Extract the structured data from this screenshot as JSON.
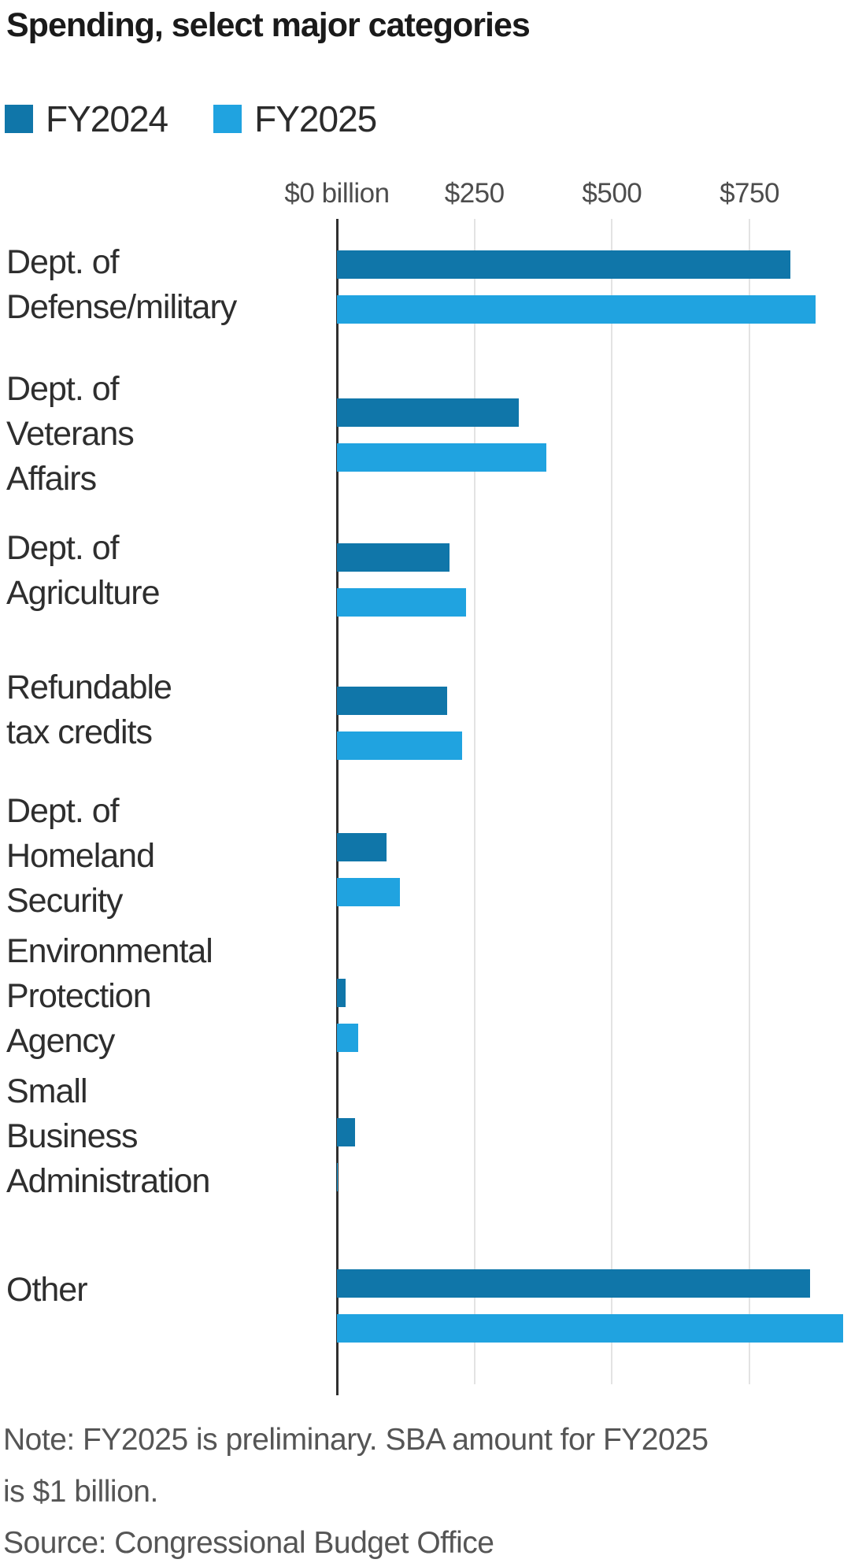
{
  "title": "Spending, select major categories",
  "legend": [
    {
      "label": "FY2024",
      "color": "#1076a9"
    },
    {
      "label": "FY2025",
      "color": "#20a3e0"
    }
  ],
  "note_lines": "Note: FY2025 is preliminary. SBA amount for FY2025\nis $1 billion.",
  "source": "Source: Congressional Budget Office",
  "category_label_lines": [
    "Dept. of\nDefense/military",
    "Dept. of\nVeterans\nAffairs",
    "Dept. of\nAgriculture",
    "Refundable\ntax credits",
    "Dept. of\nHomeland\nSecurity",
    "Environmental\nProtection\nAgency",
    "Small\nBusiness\nAdministration",
    "Other"
  ],
  "chart_data": {
    "type": "bar",
    "orientation": "horizontal",
    "unit": "billions of dollars",
    "title": "Spending, select major categories",
    "categories": [
      "Dept. of Defense/military",
      "Dept. of Veterans Affairs",
      "Dept. of Agriculture",
      "Refundable tax credits",
      "Dept. of Homeland Security",
      "Environmental Protection Agency",
      "Small Business Administration",
      "Other"
    ],
    "series": [
      {
        "name": "FY2024",
        "color": "#1076a9",
        "values": [
          825,
          330,
          205,
          200,
          90,
          16,
          33,
          860
        ]
      },
      {
        "name": "FY2025",
        "color": "#20a3e0",
        "values": [
          870,
          380,
          235,
          228,
          115,
          38,
          1,
          920
        ]
      }
    ],
    "x_axis": {
      "ticks": [
        {
          "value": 0,
          "label": "$0 billion"
        },
        {
          "value": 250,
          "label": "$250"
        },
        {
          "value": 500,
          "label": "$500"
        },
        {
          "value": 750,
          "label": "$750"
        }
      ],
      "range": [
        0,
        935
      ],
      "gridlines": true,
      "legend_position": "top-left"
    },
    "note": "Note: FY2025 is preliminary. SBA amount for FY2025 is $1 billion.",
    "source": "Source: Congressional Budget Office"
  }
}
